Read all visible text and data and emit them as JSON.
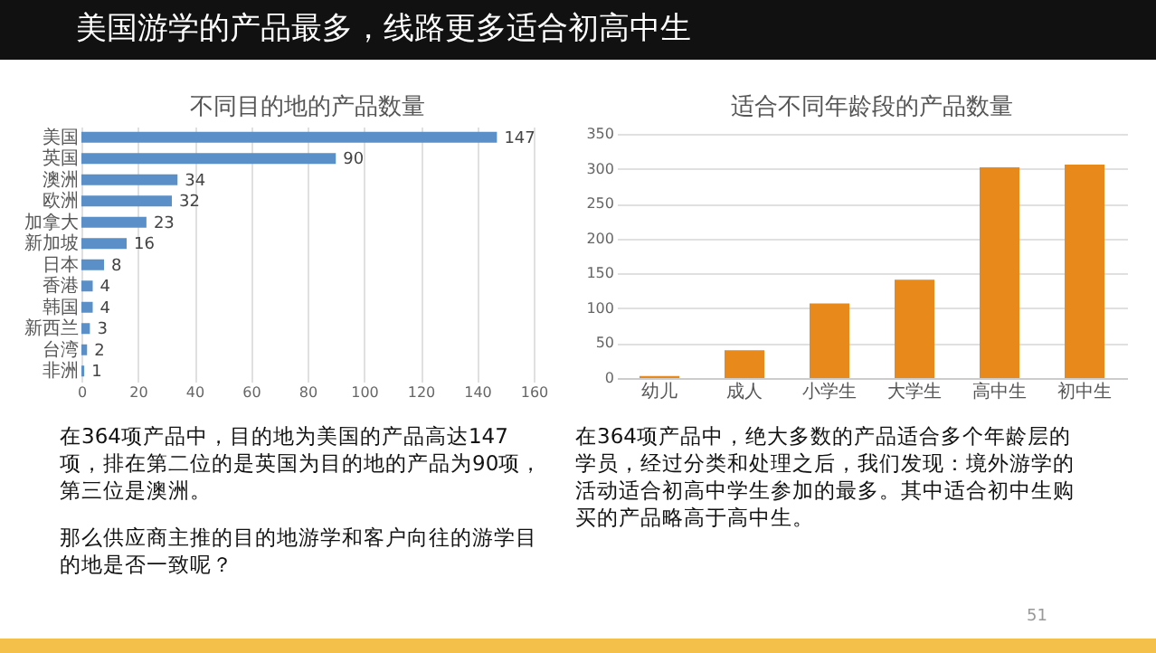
{
  "chart_data": [
    {
      "type": "bar",
      "title": "不同目的地的产品数量",
      "orientation": "horizontal",
      "categories": [
        "美国",
        "英国",
        "澳洲",
        "欧洲",
        "加拿大",
        "新加坡",
        "日本",
        "香港",
        "韩国",
        "新西兰",
        "台湾",
        "非洲"
      ],
      "values": [
        147,
        90,
        34,
        32,
        23,
        16,
        8,
        4,
        4,
        3,
        2,
        1
      ],
      "color": "#5b8fc7",
      "xlim": [
        0,
        160
      ],
      "xticks": [
        0,
        20,
        40,
        60,
        80,
        100,
        120,
        140,
        160
      ],
      "grid": "x",
      "data_labels": true,
      "annotations": [
        "美国游学的产品最多，线路更多适合初高中生",
        "在364项产品中，目的地为美国的产品高达147项，排在第二位的是英国为目的地的产品为90项，第三位是澳洲。",
        "那么供应商主推的目的地游学和客户向往的游学目的地是否一致呢？",
        "51"
      ]
    },
    {
      "type": "bar",
      "title": "适合不同年龄段的产品数量",
      "categories": [
        "幼儿",
        "成人",
        "小学生",
        "大学生",
        "高中生",
        "初中生"
      ],
      "values": [
        3,
        40,
        107,
        141,
        302,
        306
      ],
      "color": "#e8891b",
      "ylim": [
        0,
        350
      ],
      "yticks": [
        0,
        50,
        100,
        150,
        200,
        250,
        300,
        350
      ],
      "grid": "y",
      "annotations": [
        "在364项产品中，绝大多数的产品适合多个年龄层的学员，经过分类和处理之后，我们发现：境外游学的活动适合初高中学生参加的最多。其中适合初中生购买的产品略高于高中生。"
      ]
    }
  ]
}
